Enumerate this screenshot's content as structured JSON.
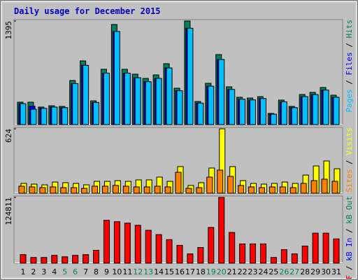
{
  "title": "Daily usage for December 2015",
  "categories": [
    "1",
    "2",
    "3",
    "4",
    "5",
    "6",
    "7",
    "8",
    "9",
    "10",
    "11",
    "12",
    "13",
    "14",
    "15",
    "16",
    "17",
    "18",
    "19",
    "20",
    "21",
    "22",
    "23",
    "24",
    "25",
    "26",
    "27",
    "28",
    "29",
    "30",
    "31"
  ],
  "category_colors": [
    "#000000",
    "#000000",
    "#000000",
    "#000000",
    "#00805c",
    "#00805c",
    "#000000",
    "#000000",
    "#000000",
    "#000000",
    "#000000",
    "#00805c",
    "#00805c",
    "#000000",
    "#000000",
    "#000000",
    "#000000",
    "#000000",
    "#00805c",
    "#00805c",
    "#000000",
    "#000000",
    "#000000",
    "#000000",
    "#000000",
    "#00805c",
    "#00805c",
    "#000000",
    "#000000",
    "#000000",
    "#000000"
  ],
  "legend_separator": " / ",
  "chart_data": [
    {
      "type": "bar",
      "ylim": [
        0,
        1395
      ],
      "yticks": [
        1395
      ],
      "series": [
        {
          "name": "Pages",
          "color": "#00c0ff",
          "values": [
            281,
            207,
            219,
            236,
            228,
            552,
            798,
            298,
            693,
            1254,
            693,
            631,
            578,
            622,
            763,
            456,
            1297,
            289,
            517,
            877,
            473,
            342,
            333,
            351,
            140,
            307,
            228,
            377,
            404,
            465,
            368
          ]
        },
        {
          "name": "Files",
          "color": "#0000ff",
          "values": [
            281,
            250,
            219,
            236,
            228,
            552,
            798,
            298,
            693,
            1254,
            693,
            631,
            578,
            622,
            763,
            456,
            1297,
            289,
            517,
            877,
            473,
            342,
            333,
            351,
            140,
            307,
            228,
            377,
            404,
            465,
            368
          ]
        },
        {
          "name": "Hits",
          "color": "#00805c",
          "values": [
            302,
            302,
            236,
            254,
            245,
            594,
            858,
            320,
            745,
            1348,
            745,
            679,
            622,
            669,
            820,
            490,
            1395,
            311,
            556,
            943,
            509,
            368,
            358,
            377,
            151,
            330,
            245,
            405,
            434,
            500,
            396
          ]
        }
      ]
    },
    {
      "type": "bar",
      "ylim": [
        0,
        624
      ],
      "yticks": [
        624
      ],
      "series": [
        {
          "name": "Sites",
          "color": "#ff8000",
          "values": [
            68,
            61,
            54,
            61,
            54,
            54,
            47,
            68,
            68,
            75,
            68,
            61,
            61,
            68,
            61,
            203,
            47,
            54,
            156,
            224,
            163,
            75,
            61,
            54,
            61,
            61,
            54,
            95,
            122,
            136,
            115
          ]
        },
        {
          "name": "Visits",
          "color": "#ffff00",
          "values": [
            95,
            88,
            81,
            108,
            102,
            95,
            81,
            115,
            115,
            122,
            115,
            129,
            129,
            156,
            115,
            258,
            75,
            102,
            244,
            624,
            258,
            122,
            95,
            88,
            95,
            108,
            95,
            176,
            264,
            312,
            237
          ]
        }
      ]
    },
    {
      "type": "bar",
      "ylim": [
        0,
        124811
      ],
      "yticks": [
        124811
      ],
      "series": [
        {
          "name": "kB F",
          "color": "#ff0000",
          "values": [
            16280,
            10853,
            10853,
            14923,
            12210,
            14923,
            16280,
            24420,
            81399,
            78686,
            75973,
            71903,
            62406,
            54266,
            44770,
            33916,
            17636,
            29846,
            67832,
            124811,
            58336,
            36630,
            36630,
            36630,
            10853,
            25776,
            17636,
            32559,
            56980,
            56980,
            46126
          ]
        },
        {
          "name": "kB In",
          "color": "#0000ff"
        },
        {
          "name": "kB Out",
          "color": "#00805c"
        }
      ]
    }
  ]
}
